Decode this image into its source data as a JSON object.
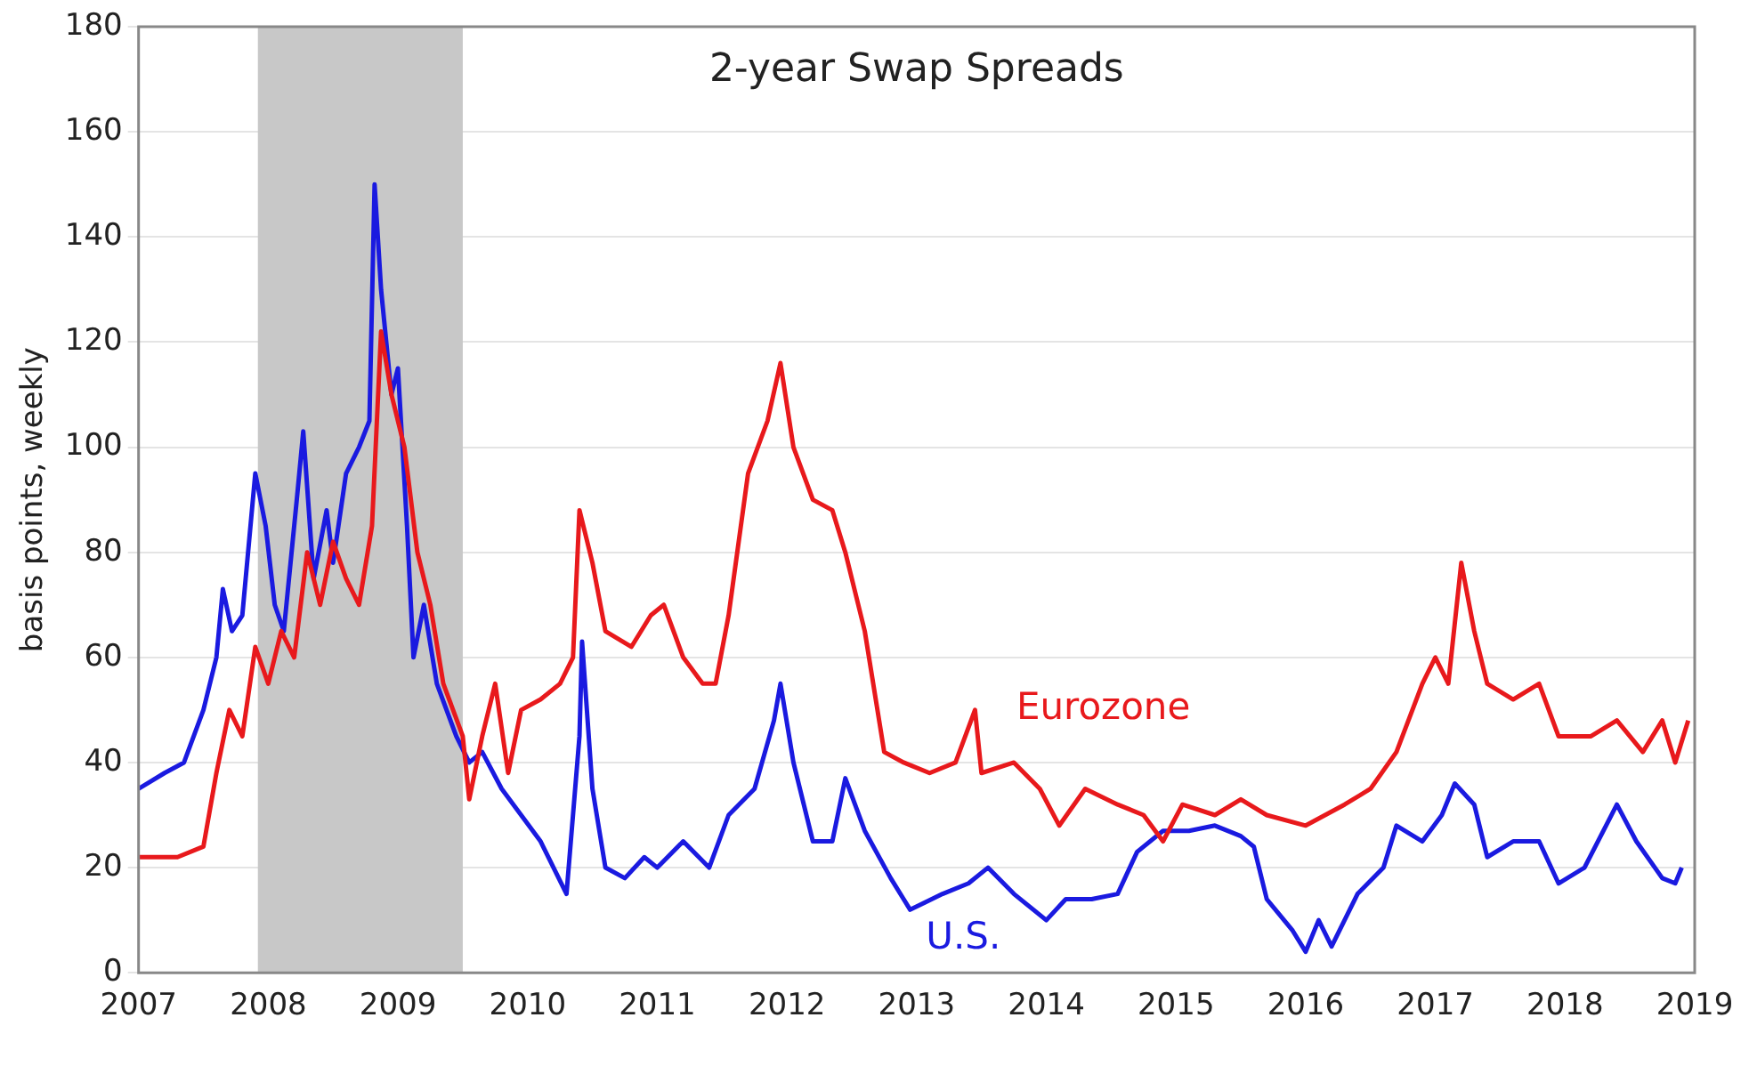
{
  "chart_data": {
    "type": "line",
    "title": "2-year Swap Spreads",
    "ylabel": "basis points, weekly",
    "xlim": [
      2007,
      2019
    ],
    "xticks": [
      2007,
      2008,
      2009,
      2010,
      2011,
      2012,
      2013,
      2014,
      2015,
      2016,
      2017,
      2018,
      2019
    ],
    "ylim": [
      0,
      180
    ],
    "yticks": [
      0,
      20,
      40,
      60,
      80,
      100,
      120,
      140,
      160,
      180
    ],
    "grid": "y",
    "legend": false,
    "marker": "none",
    "line_style": "solid",
    "bands": [
      {
        "axis": "x",
        "from": 2007.92,
        "to": 2009.5,
        "color": "#c8c8c8"
      }
    ],
    "series": [
      {
        "name": "Eurozone",
        "color": "#e8191c",
        "x": [
          2007.0,
          2007.3,
          2007.5,
          2007.6,
          2007.7,
          2007.8,
          2007.9,
          2008.0,
          2008.1,
          2008.2,
          2008.3,
          2008.4,
          2008.5,
          2008.6,
          2008.7,
          2008.8,
          2008.87,
          2008.95,
          2009.05,
          2009.15,
          2009.25,
          2009.35,
          2009.5,
          2009.55,
          2009.65,
          2009.75,
          2009.85,
          2009.95,
          2010.1,
          2010.25,
          2010.35,
          2010.4,
          2010.5,
          2010.6,
          2010.8,
          2010.95,
          2011.05,
          2011.2,
          2011.35,
          2011.45,
          2011.55,
          2011.7,
          2011.85,
          2011.95,
          2012.05,
          2012.2,
          2012.35,
          2012.45,
          2012.6,
          2012.75,
          2012.9,
          2013.1,
          2013.3,
          2013.45,
          2013.5,
          2013.75,
          2013.95,
          2014.1,
          2014.3,
          2014.55,
          2014.75,
          2014.9,
          2015.05,
          2015.3,
          2015.5,
          2015.7,
          2016.0,
          2016.3,
          2016.5,
          2016.7,
          2016.9,
          2017.0,
          2017.1,
          2017.2,
          2017.3,
          2017.4,
          2017.6,
          2017.8,
          2017.95,
          2018.2,
          2018.4,
          2018.6,
          2018.75,
          2018.85,
          2018.95
        ],
        "values": [
          22,
          22,
          24,
          38,
          50,
          45,
          62,
          55,
          65,
          60,
          80,
          70,
          82,
          75,
          70,
          85,
          122,
          110,
          100,
          80,
          70,
          55,
          45,
          33,
          45,
          55,
          38,
          50,
          52,
          55,
          60,
          88,
          78,
          65,
          62,
          68,
          70,
          60,
          55,
          55,
          68,
          95,
          105,
          116,
          100,
          90,
          88,
          80,
          65,
          42,
          40,
          38,
          40,
          50,
          38,
          40,
          35,
          28,
          35,
          32,
          30,
          25,
          32,
          30,
          33,
          30,
          28,
          32,
          35,
          42,
          55,
          60,
          55,
          78,
          65,
          55,
          52,
          55,
          45,
          45,
          48,
          42,
          48,
          40,
          48
        ]
      },
      {
        "name": "U.S.",
        "color": "#1a1ae0",
        "x": [
          2007.0,
          2007.2,
          2007.35,
          2007.5,
          2007.6,
          2007.65,
          2007.72,
          2007.8,
          2007.9,
          2007.98,
          2008.05,
          2008.12,
          2008.22,
          2008.27,
          2008.35,
          2008.45,
          2008.5,
          2008.6,
          2008.7,
          2008.78,
          2008.82,
          2008.87,
          2008.95,
          2009.0,
          2009.07,
          2009.12,
          2009.2,
          2009.3,
          2009.45,
          2009.55,
          2009.65,
          2009.8,
          2009.95,
          2010.1,
          2010.3,
          2010.4,
          2010.42,
          2010.5,
          2010.6,
          2010.75,
          2010.9,
          2011.0,
          2011.2,
          2011.4,
          2011.55,
          2011.75,
          2011.9,
          2011.95,
          2012.05,
          2012.2,
          2012.35,
          2012.45,
          2012.6,
          2012.8,
          2012.95,
          2013.2,
          2013.4,
          2013.55,
          2013.75,
          2014.0,
          2014.15,
          2014.35,
          2014.55,
          2014.7,
          2014.9,
          2015.1,
          2015.3,
          2015.5,
          2015.6,
          2015.7,
          2015.9,
          2016.0,
          2016.1,
          2016.2,
          2016.4,
          2016.6,
          2016.7,
          2016.9,
          2017.05,
          2017.15,
          2017.3,
          2017.4,
          2017.6,
          2017.8,
          2017.95,
          2018.15,
          2018.4,
          2018.55,
          2018.75,
          2018.85,
          2018.9
        ],
        "values": [
          35,
          38,
          40,
          50,
          60,
          73,
          65,
          68,
          95,
          85,
          70,
          65,
          90,
          103,
          75,
          88,
          78,
          95,
          100,
          105,
          150,
          130,
          110,
          115,
          85,
          60,
          70,
          55,
          45,
          40,
          42,
          35,
          30,
          25,
          15,
          45,
          63,
          35,
          20,
          18,
          22,
          20,
          25,
          20,
          30,
          35,
          48,
          55,
          40,
          25,
          25,
          37,
          27,
          18,
          12,
          15,
          17,
          20,
          15,
          10,
          14,
          14,
          15,
          23,
          27,
          27,
          28,
          26,
          24,
          14,
          8,
          4,
          10,
          5,
          15,
          20,
          28,
          25,
          30,
          36,
          32,
          22,
          25,
          25,
          17,
          20,
          32,
          25,
          18,
          17,
          20
        ]
      }
    ]
  }
}
